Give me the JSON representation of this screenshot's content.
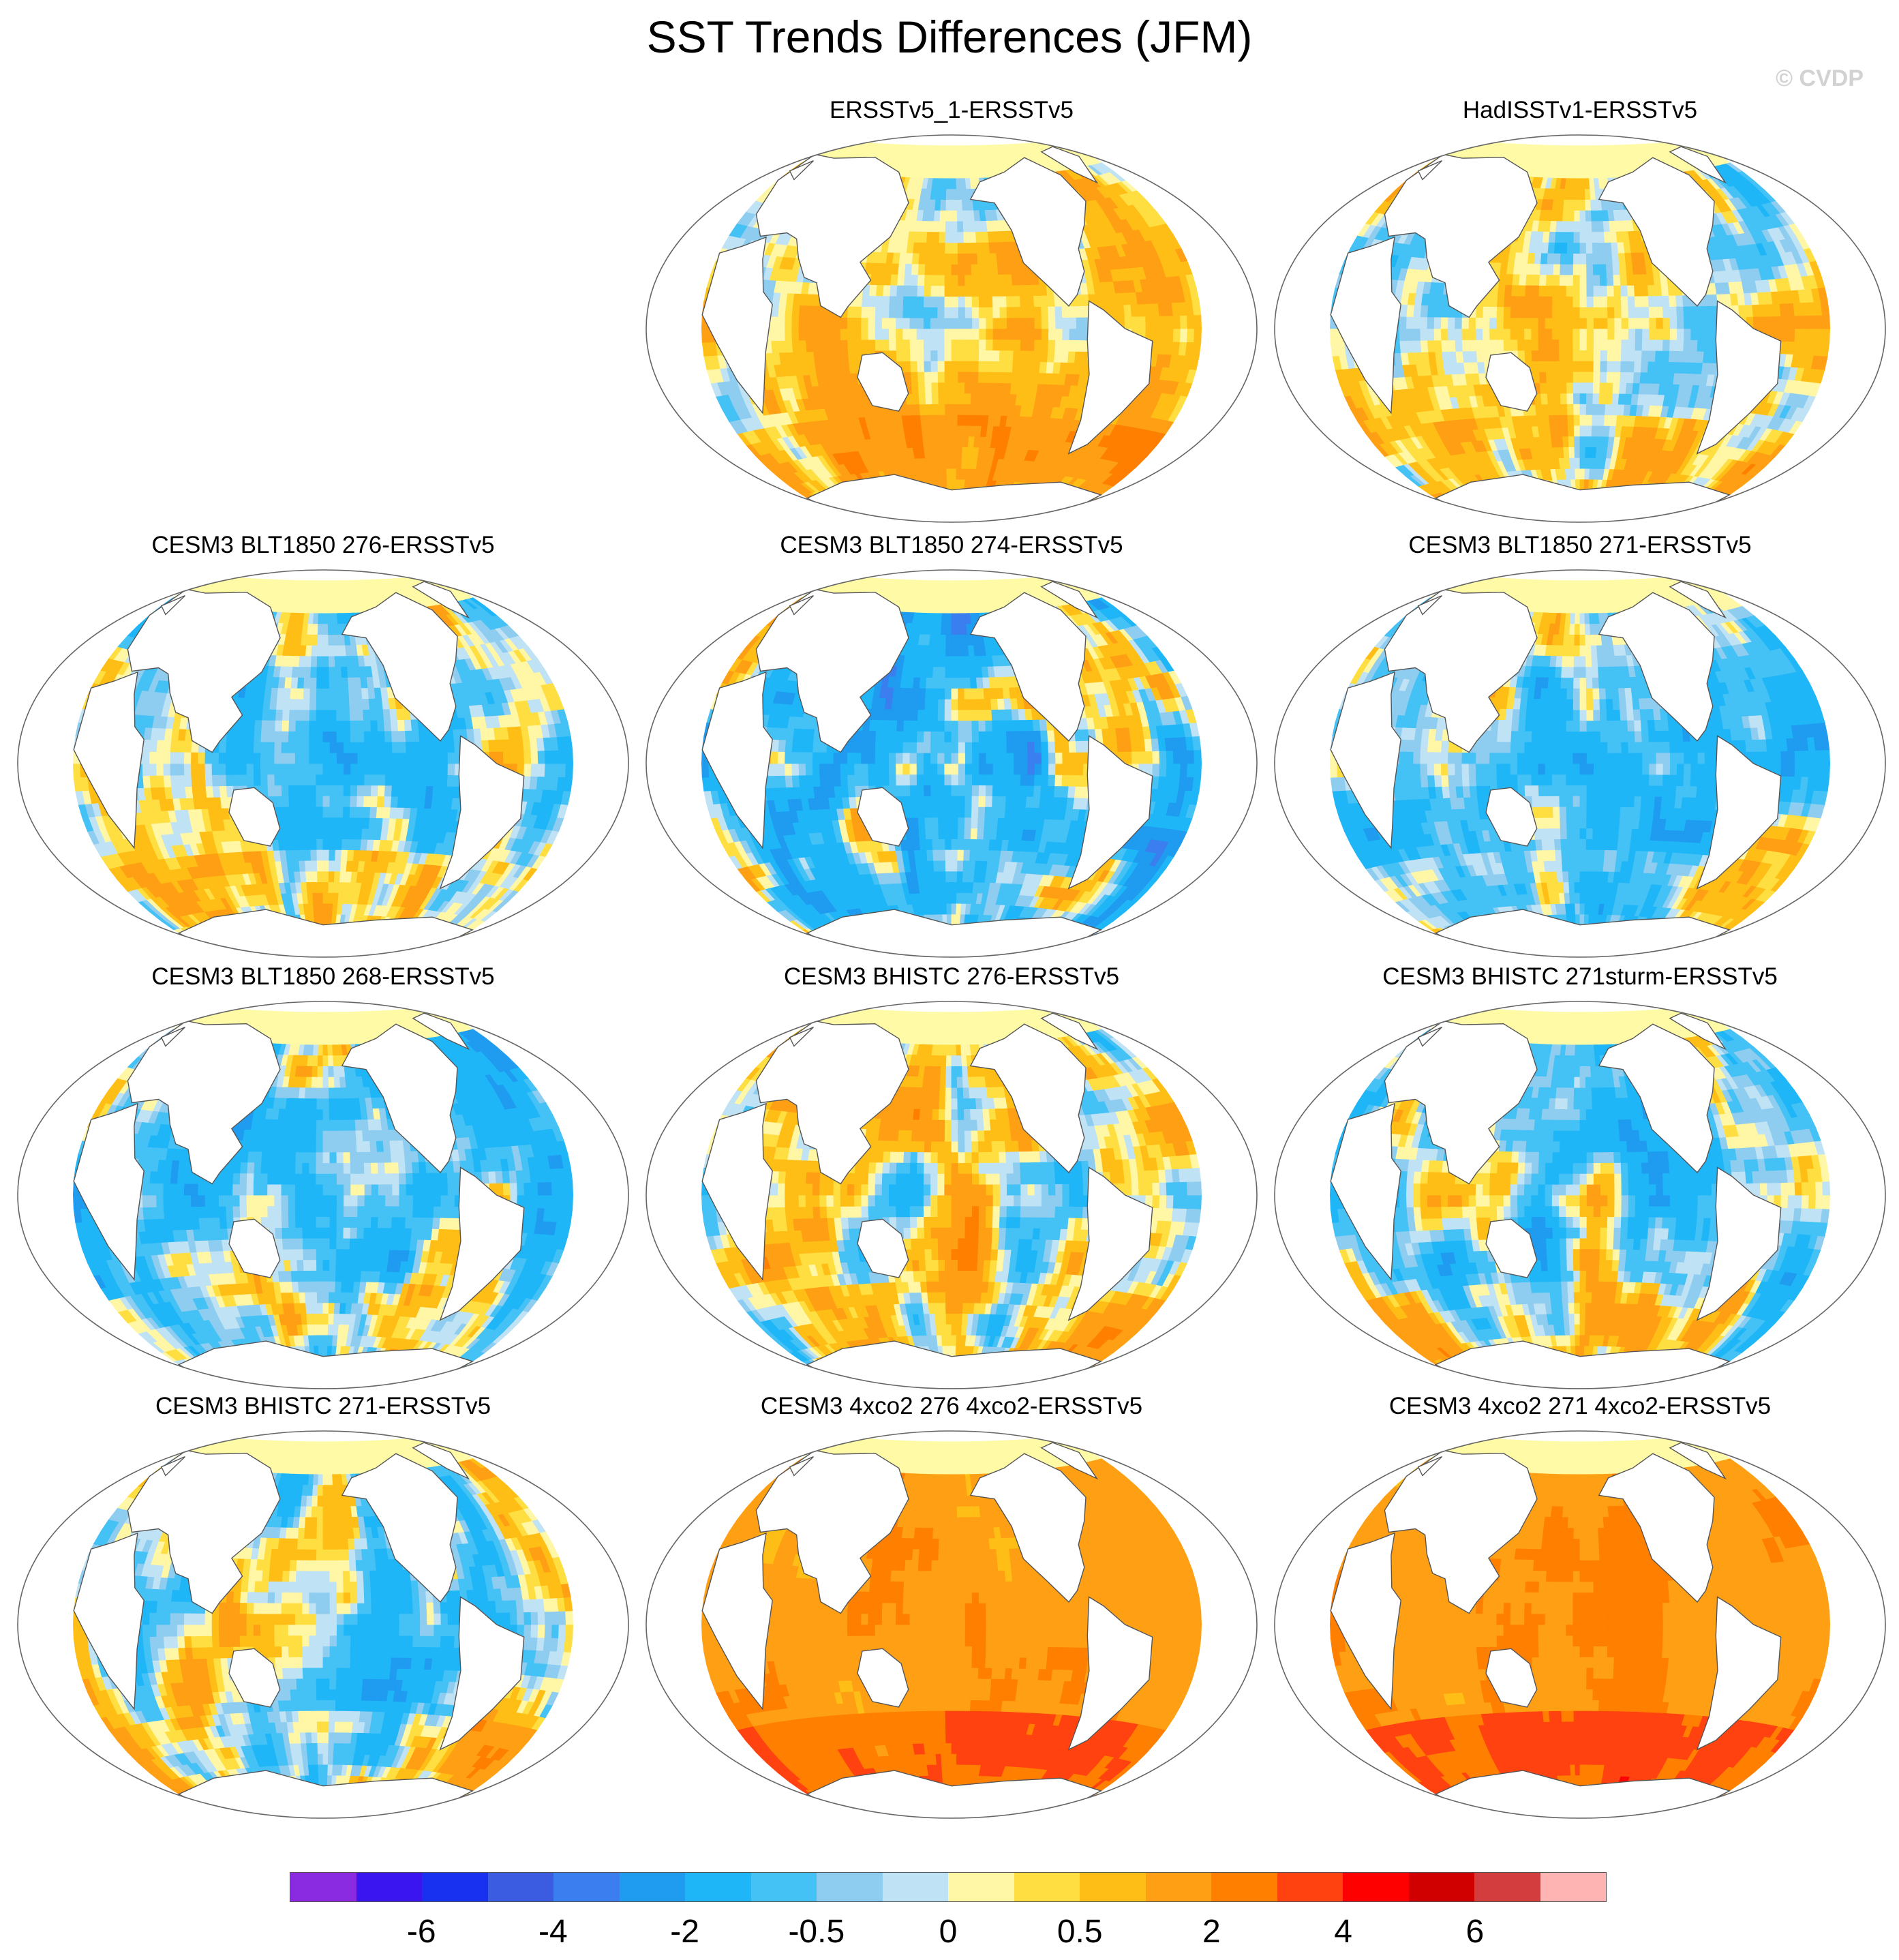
{
  "title": "SST Trends Differences (JFM)",
  "credit": "© CVDP",
  "chart_data": [
    {
      "type": "map",
      "title": "ERSSTv5_1-ERSSTv5",
      "palette": {
        "shift": 0.55,
        "spread": 1.0,
        "amp": 1.0
      }
    },
    {
      "type": "map",
      "title": "HadISSTv1-ERSSTv5",
      "palette": {
        "shift": 0.1,
        "spread": 1.0,
        "amp": 1.2
      }
    },
    {
      "type": "map",
      "title": "CESM3 BLT1850 276-ERSSTv5",
      "palette": {
        "shift": -0.35,
        "spread": 1.0,
        "amp": 1.3
      }
    },
    {
      "type": "map",
      "title": "CESM3 BLT1850 274-ERSSTv5",
      "palette": {
        "shift": -0.7,
        "spread": 1.1,
        "amp": 1.6
      }
    },
    {
      "type": "map",
      "title": "CESM3 BLT1850 271-ERSSTv5",
      "palette": {
        "shift": -0.6,
        "spread": 1.0,
        "amp": 1.3
      }
    },
    {
      "type": "map",
      "title": "CESM3 BLT1850 268-ERSSTv5",
      "palette": {
        "shift": -0.65,
        "spread": 1.0,
        "amp": 1.3
      }
    },
    {
      "type": "map",
      "title": "CESM3 BHISTC 276-ERSSTv5",
      "palette": {
        "shift": 0.25,
        "spread": 1.0,
        "amp": 1.3
      }
    },
    {
      "type": "map",
      "title": "CESM3 BHISTC 271sturm-ERSSTv5",
      "palette": {
        "shift": -0.4,
        "spread": 1.0,
        "amp": 1.2
      }
    },
    {
      "type": "map",
      "title": "CESM3 BHISTC 271-ERSSTv5",
      "palette": {
        "shift": -0.1,
        "spread": 1.0,
        "amp": 1.3
      }
    },
    {
      "type": "map",
      "title": "CESM3 4xco2 276 4xco2-ERSSTv5",
      "palette": {
        "shift": 1.55,
        "spread": 0.55,
        "amp": 1.0
      }
    },
    {
      "type": "map",
      "title": "CESM3 4xco2 271 4xco2-ERSSTv5",
      "palette": {
        "shift": 1.75,
        "spread": 0.55,
        "amp": 1.0
      }
    }
  ],
  "colorbar": {
    "colors": [
      "#8a2be2",
      "#3a15f0",
      "#1830f0",
      "#3b5be0",
      "#3a7ef0",
      "#1f9bf0",
      "#1fb6f8",
      "#44c1f5",
      "#8ecdf0",
      "#bfe2f5",
      "#fff6a6",
      "#ffde41",
      "#ffbe16",
      "#ff9f14",
      "#ff7f00",
      "#ff4210",
      "#ff0000",
      "#d10000",
      "#d43d3d",
      "#ffb4b4"
    ],
    "labels": [
      "-6",
      "-4",
      "-2",
      "-0.5",
      "0",
      "0.5",
      "2",
      "4",
      "6"
    ]
  },
  "land_color": "#ffffff",
  "sea_ice_color": "#fffaa6"
}
